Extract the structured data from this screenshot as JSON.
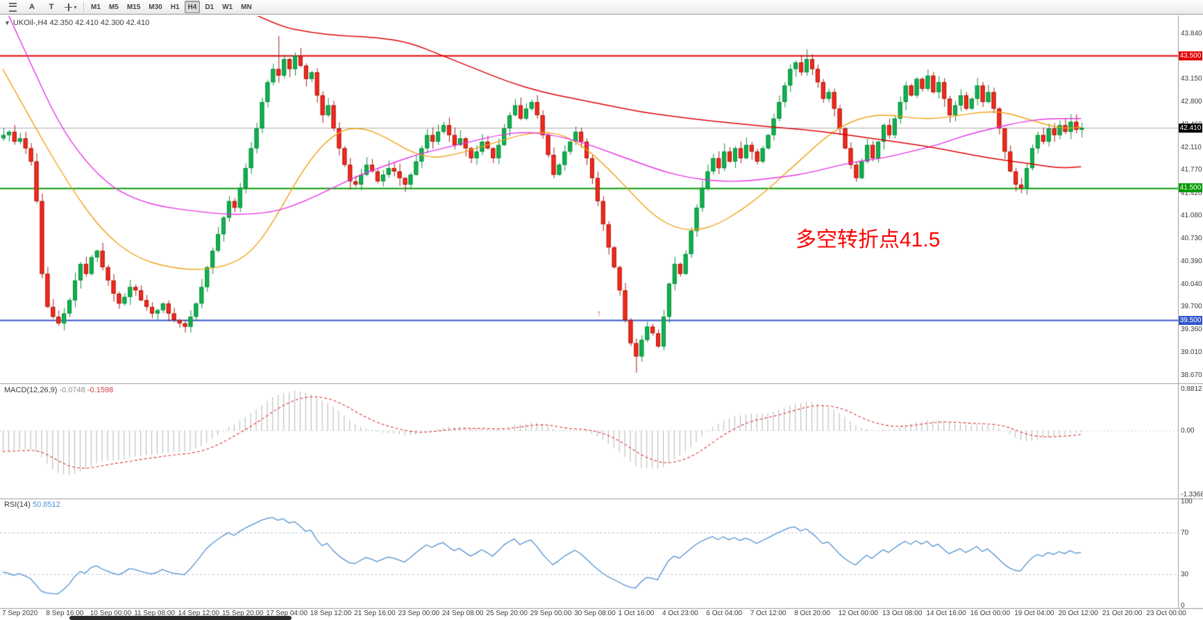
{
  "toolbar": {
    "timeframes": [
      "M1",
      "M5",
      "M15",
      "M30",
      "H1",
      "H4",
      "D1",
      "W1",
      "MN"
    ],
    "active_timeframe": "H4",
    "tools": {
      "a_label": "A",
      "t_label": "T"
    }
  },
  "chart": {
    "symbol": "UKOil-,H4",
    "ohlc": "42.350 42.410 42.300 42.410",
    "annotation": {
      "text": "多空转折点41.5",
      "color": "#ff0000"
    },
    "y_max": 43.84,
    "y_min": 38.67,
    "levels": [
      {
        "price": 43.5,
        "label": "43.500",
        "color": "#e00000",
        "type": "resistance"
      },
      {
        "price": 42.41,
        "label": "42.410",
        "color": "#000000",
        "type": "current"
      },
      {
        "price": 41.5,
        "label": "41.500",
        "color": "#009900",
        "type": "pivot"
      },
      {
        "price": 39.5,
        "label": "39.500",
        "color": "#3355cc",
        "type": "support"
      }
    ],
    "y_axis": [
      "43.840",
      "43.500",
      "43.150",
      "42.800",
      "42.460",
      "42.110",
      "41.770",
      "41.420",
      "41.080",
      "40.730",
      "40.390",
      "40.040",
      "39.700",
      "39.360",
      "39.010",
      "38.670"
    ],
    "x_axis": [
      "7 Sep 2020",
      "8 Sep 16:00",
      "10 Sep 00:00",
      "11 Sep 08:00",
      "14 Sep 12:00",
      "15 Sep 20:00",
      "17 Sep 04:00",
      "18 Sep 12:00",
      "21 Sep 16:00",
      "23 Sep 00:00",
      "24 Sep 08:00",
      "25 Sep 20:00",
      "29 Sep 00:00",
      "30 Sep 08:00",
      "1 Oct 16:00",
      "4 Oct 23:00",
      "6 Oct 04:00",
      "7 Oct 12:00",
      "8 Oct 20:00",
      "12 Oct 00:00",
      "13 Oct 08:00",
      "14 Oct 16:00",
      "16 Oct 00:00",
      "19 Oct 04:00",
      "20 Oct 12:00",
      "21 Oct 20:00",
      "23 Oct 00:00"
    ]
  },
  "macd": {
    "title": "MACD(12,26,9)",
    "value1": "-0.0748",
    "value2": "-0.1598",
    "axis": [
      "0.8812",
      "0.00",
      "-1.3368"
    ],
    "max": 0.8812,
    "min": -1.3368
  },
  "rsi": {
    "title": "RSI(14)",
    "value": "50.8512",
    "axis": [
      "100",
      "70",
      "30",
      "0"
    ],
    "levels": [
      70,
      30
    ]
  },
  "chart_data": {
    "type": "candlestick",
    "timeframe": "H4",
    "first_open": 42.25,
    "closes": [
      42.3,
      42.35,
      42.2,
      42.25,
      42.1,
      41.9,
      41.3,
      40.2,
      39.7,
      39.55,
      39.45,
      39.6,
      39.8,
      40.1,
      40.35,
      40.2,
      40.45,
      40.55,
      40.3,
      40.1,
      39.9,
      39.75,
      39.85,
      40.0,
      39.95,
      39.8,
      39.7,
      39.6,
      39.65,
      39.75,
      39.6,
      39.5,
      39.45,
      39.4,
      39.55,
      39.75,
      40.0,
      40.3,
      40.55,
      40.8,
      41.05,
      41.3,
      41.2,
      41.5,
      41.8,
      42.1,
      42.4,
      42.8,
      43.1,
      43.3,
      43.2,
      43.45,
      43.3,
      43.5,
      43.35,
      43.15,
      43.25,
      42.9,
      42.6,
      42.75,
      42.4,
      42.1,
      41.85,
      41.6,
      41.55,
      41.7,
      41.85,
      41.75,
      41.6,
      41.7,
      41.8,
      41.75,
      41.65,
      41.55,
      41.7,
      41.9,
      42.1,
      42.3,
      42.2,
      42.35,
      42.45,
      42.3,
      42.15,
      42.25,
      42.1,
      41.95,
      42.05,
      42.2,
      42.1,
      41.95,
      42.15,
      42.4,
      42.6,
      42.75,
      42.55,
      42.7,
      42.8,
      42.6,
      42.3,
      42.0,
      41.7,
      41.85,
      42.05,
      42.2,
      42.35,
      42.2,
      41.95,
      41.65,
      41.3,
      40.95,
      40.6,
      40.3,
      39.95,
      39.5,
      39.15,
      38.95,
      39.2,
      39.4,
      39.3,
      39.1,
      39.55,
      40.05,
      40.35,
      40.2,
      40.5,
      40.85,
      41.2,
      41.5,
      41.75,
      41.95,
      41.8,
      42.05,
      41.9,
      42.1,
      41.95,
      42.15,
      42.05,
      41.9,
      42.1,
      42.3,
      42.55,
      42.8,
      43.05,
      43.3,
      43.4,
      43.25,
      43.45,
      43.3,
      43.1,
      42.85,
      42.95,
      42.7,
      42.4,
      42.1,
      41.85,
      41.65,
      41.9,
      42.15,
      41.95,
      42.2,
      42.45,
      42.3,
      42.55,
      42.8,
      43.05,
      42.9,
      43.15,
      43.0,
      43.2,
      42.95,
      43.1,
      42.85,
      42.6,
      42.75,
      42.9,
      42.7,
      42.85,
      43.05,
      42.8,
      42.95,
      42.7,
      42.4,
      42.05,
      41.75,
      41.55,
      41.5,
      41.8,
      42.1,
      42.3,
      42.2,
      42.4,
      42.3,
      42.45,
      42.35,
      42.5,
      42.38,
      42.41
    ],
    "wick_overrides": {
      "50": {
        "h": 43.8
      },
      "115": {
        "l": 38.7
      },
      "146": {
        "h": 43.6
      },
      "185": {
        "l": 41.42
      }
    },
    "ma_orange": [
      [
        0,
        43.3
      ],
      [
        6,
        42.4
      ],
      [
        12,
        41.55
      ],
      [
        18,
        40.85
      ],
      [
        24,
        40.45
      ],
      [
        30,
        40.3
      ],
      [
        36,
        40.25
      ],
      [
        42,
        40.35
      ],
      [
        46,
        40.6
      ],
      [
        50,
        41.1
      ],
      [
        54,
        41.7
      ],
      [
        58,
        42.15
      ],
      [
        62,
        42.4
      ],
      [
        66,
        42.4
      ],
      [
        70,
        42.25
      ],
      [
        74,
        42.05
      ],
      [
        78,
        41.95
      ],
      [
        82,
        42.0
      ],
      [
        86,
        42.1
      ],
      [
        90,
        42.2
      ],
      [
        94,
        42.3
      ],
      [
        98,
        42.35
      ],
      [
        102,
        42.3
      ],
      [
        106,
        42.1
      ],
      [
        110,
        41.8
      ],
      [
        114,
        41.45
      ],
      [
        118,
        41.1
      ],
      [
        122,
        40.9
      ],
      [
        126,
        40.85
      ],
      [
        130,
        40.95
      ],
      [
        134,
        41.15
      ],
      [
        138,
        41.4
      ],
      [
        142,
        41.7
      ],
      [
        146,
        42.0
      ],
      [
        150,
        42.3
      ],
      [
        154,
        42.5
      ],
      [
        158,
        42.6
      ],
      [
        162,
        42.6
      ],
      [
        166,
        42.55
      ],
      [
        170,
        42.55
      ],
      [
        174,
        42.6
      ],
      [
        178,
        42.65
      ],
      [
        182,
        42.65
      ],
      [
        186,
        42.55
      ],
      [
        190,
        42.45
      ],
      [
        193,
        42.4
      ],
      [
        196,
        42.42
      ]
    ],
    "ma_magenta": [
      [
        0,
        44.3
      ],
      [
        5,
        43.4
      ],
      [
        10,
        42.5
      ],
      [
        15,
        41.9
      ],
      [
        20,
        41.5
      ],
      [
        25,
        41.3
      ],
      [
        30,
        41.2
      ],
      [
        35,
        41.15
      ],
      [
        40,
        41.1
      ],
      [
        45,
        41.1
      ],
      [
        50,
        41.15
      ],
      [
        55,
        41.3
      ],
      [
        60,
        41.5
      ],
      [
        65,
        41.7
      ],
      [
        70,
        41.85
      ],
      [
        75,
        42.0
      ],
      [
        80,
        42.1
      ],
      [
        85,
        42.2
      ],
      [
        90,
        42.3
      ],
      [
        95,
        42.35
      ],
      [
        100,
        42.3
      ],
      [
        105,
        42.2
      ],
      [
        110,
        42.05
      ],
      [
        115,
        41.9
      ],
      [
        120,
        41.75
      ],
      [
        125,
        41.65
      ],
      [
        130,
        41.6
      ],
      [
        135,
        41.6
      ],
      [
        140,
        41.65
      ],
      [
        145,
        41.7
      ],
      [
        150,
        41.8
      ],
      [
        155,
        41.9
      ],
      [
        160,
        41.95
      ],
      [
        165,
        42.05
      ],
      [
        170,
        42.15
      ],
      [
        175,
        42.3
      ],
      [
        180,
        42.4
      ],
      [
        185,
        42.5
      ],
      [
        190,
        42.55
      ],
      [
        196,
        42.55
      ]
    ],
    "ma_red": [
      [
        44,
        44.2
      ],
      [
        50,
        43.95
      ],
      [
        56,
        43.85
      ],
      [
        62,
        43.8
      ],
      [
        68,
        43.78
      ],
      [
        74,
        43.7
      ],
      [
        80,
        43.5
      ],
      [
        86,
        43.3
      ],
      [
        92,
        43.1
      ],
      [
        98,
        42.95
      ],
      [
        104,
        42.85
      ],
      [
        110,
        42.75
      ],
      [
        116,
        42.65
      ],
      [
        122,
        42.58
      ],
      [
        128,
        42.52
      ],
      [
        134,
        42.47
      ],
      [
        140,
        42.42
      ],
      [
        146,
        42.38
      ],
      [
        152,
        42.32
      ],
      [
        158,
        42.25
      ],
      [
        164,
        42.18
      ],
      [
        170,
        42.1
      ],
      [
        176,
        42.0
      ],
      [
        182,
        41.92
      ],
      [
        188,
        41.85
      ],
      [
        192,
        41.8
      ],
      [
        196,
        41.82
      ]
    ],
    "colors": {
      "up": "#12b04f",
      "up_border": "#0a8f3c",
      "down": "#f5291b",
      "down_border": "#a61b12",
      "ma_orange": "#efa318",
      "ma_magenta": "#e633e6",
      "ma_red": "#dd0000",
      "macd_hist": "#b4b4b4",
      "macd_signal": "#dd3333",
      "rsi": "#4f8fce",
      "current_line": "#a8a8a8"
    }
  }
}
